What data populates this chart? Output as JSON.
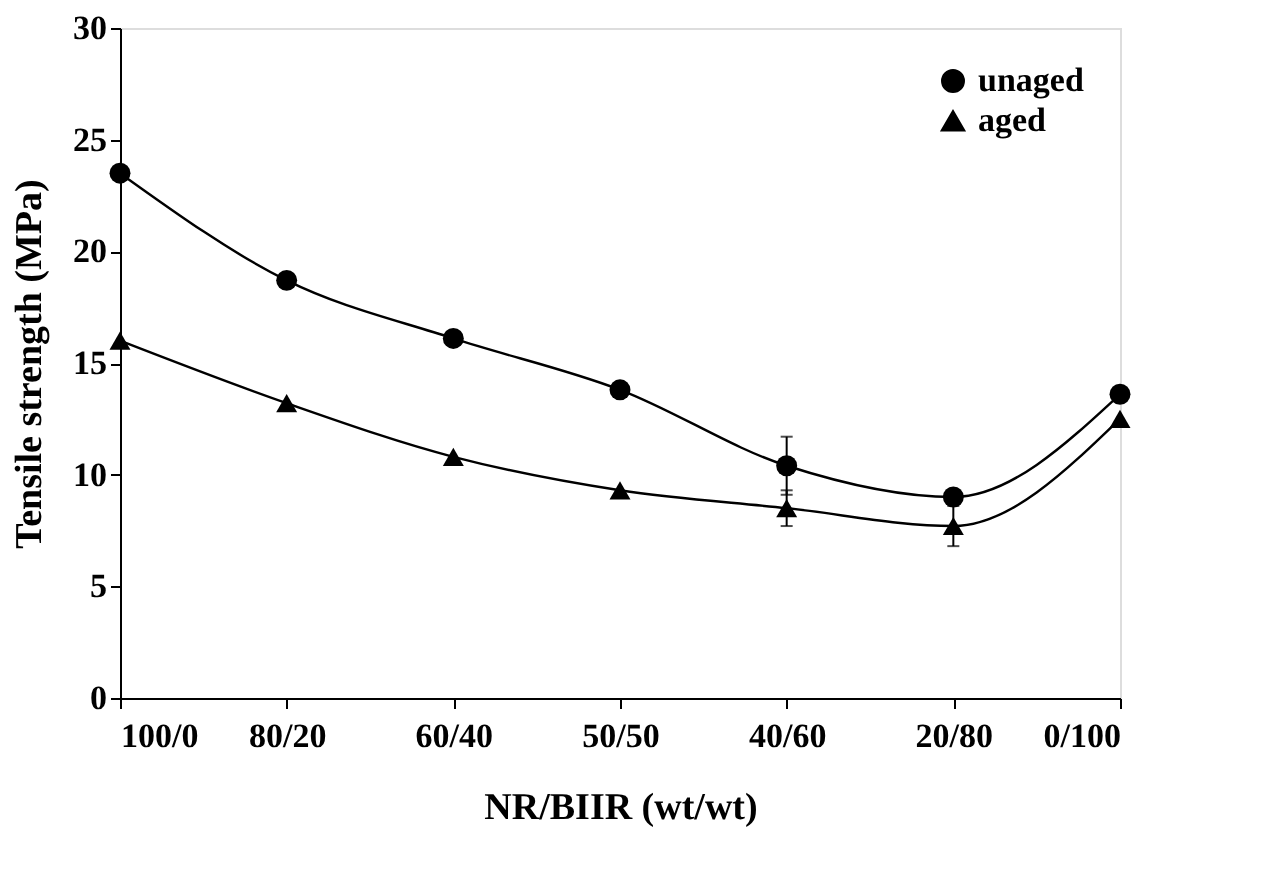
{
  "chart_data": {
    "type": "line",
    "xlabel": "NR/BIIR (wt/wt)",
    "ylabel": "Tensile strength (MPa)",
    "categories": [
      "100/0",
      "80/20",
      "60/40",
      "50/50",
      "40/60",
      "20/80",
      "0/100"
    ],
    "series": [
      {
        "name": "unaged",
        "color": "#000000",
        "marker": "circle",
        "values": [
          23.5,
          18.7,
          16.1,
          13.8,
          10.4,
          9.0,
          13.6
        ],
        "errors": [
          null,
          null,
          null,
          null,
          1.3,
          0.3,
          null
        ]
      },
      {
        "name": "aged",
        "color": "#000000",
        "marker": "triangle",
        "values": [
          16.0,
          13.2,
          10.8,
          9.3,
          8.5,
          7.7,
          12.5
        ],
        "errors": [
          null,
          null,
          null,
          null,
          0.8,
          0.9,
          null
        ]
      }
    ],
    "ylim": [
      0,
      30
    ],
    "yticks": [
      0,
      5,
      10,
      15,
      20,
      25,
      30
    ],
    "grid": false,
    "legend": "top right"
  }
}
